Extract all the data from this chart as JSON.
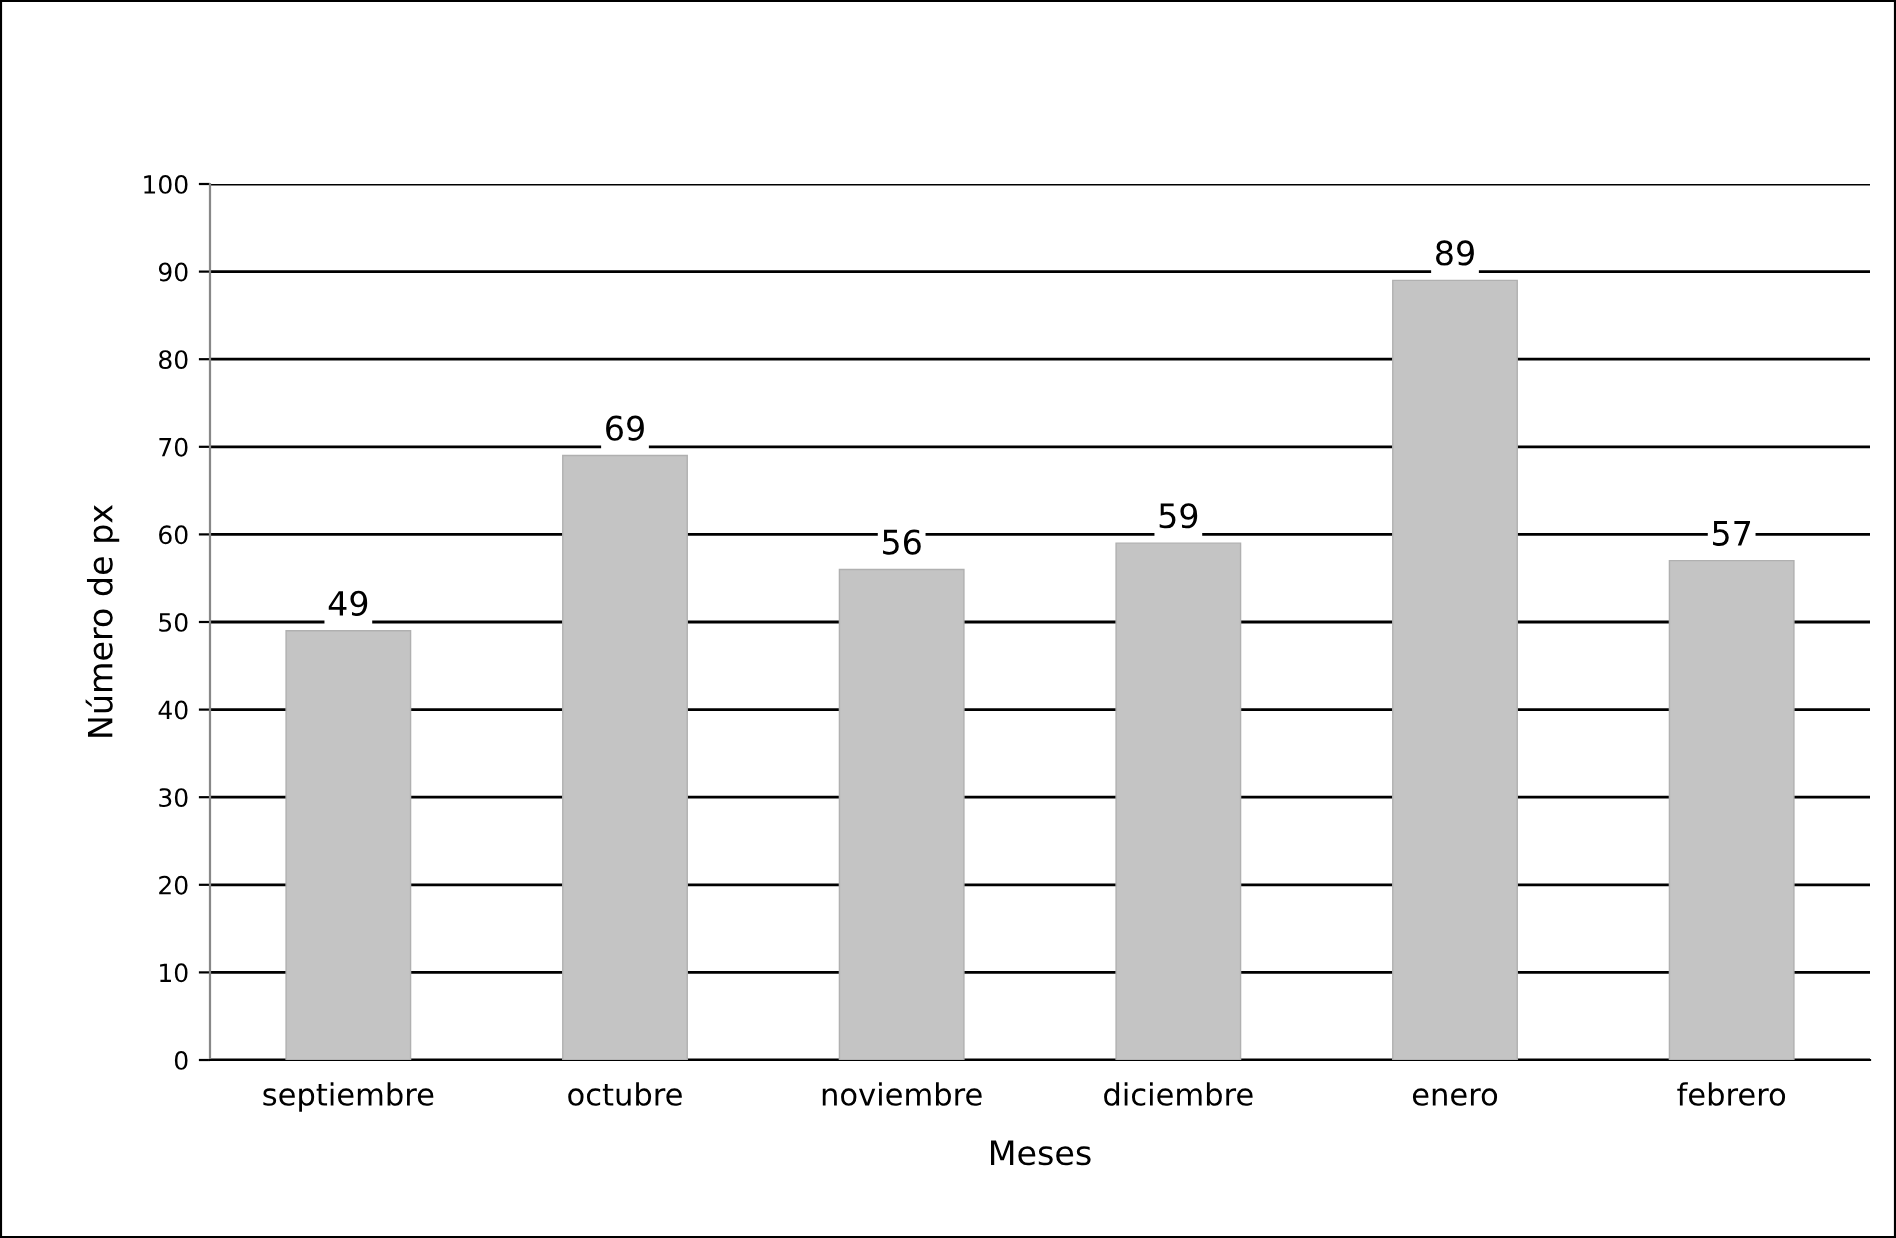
{
  "chart_data": {
    "type": "bar",
    "categories": [
      "septiembre",
      "octubre",
      "noviembre",
      "diciembre",
      "enero",
      "febrero"
    ],
    "values": [
      49,
      69,
      56,
      59,
      89,
      57
    ],
    "color": "#c4c4c4",
    "xlabel": "Meses",
    "ylabel": "Número de px",
    "ylim": [
      0,
      100
    ],
    "yticks": [
      0,
      10,
      20,
      30,
      40,
      50,
      60,
      70,
      80,
      90,
      100
    ],
    "grid": "y",
    "data_labels": true
  }
}
